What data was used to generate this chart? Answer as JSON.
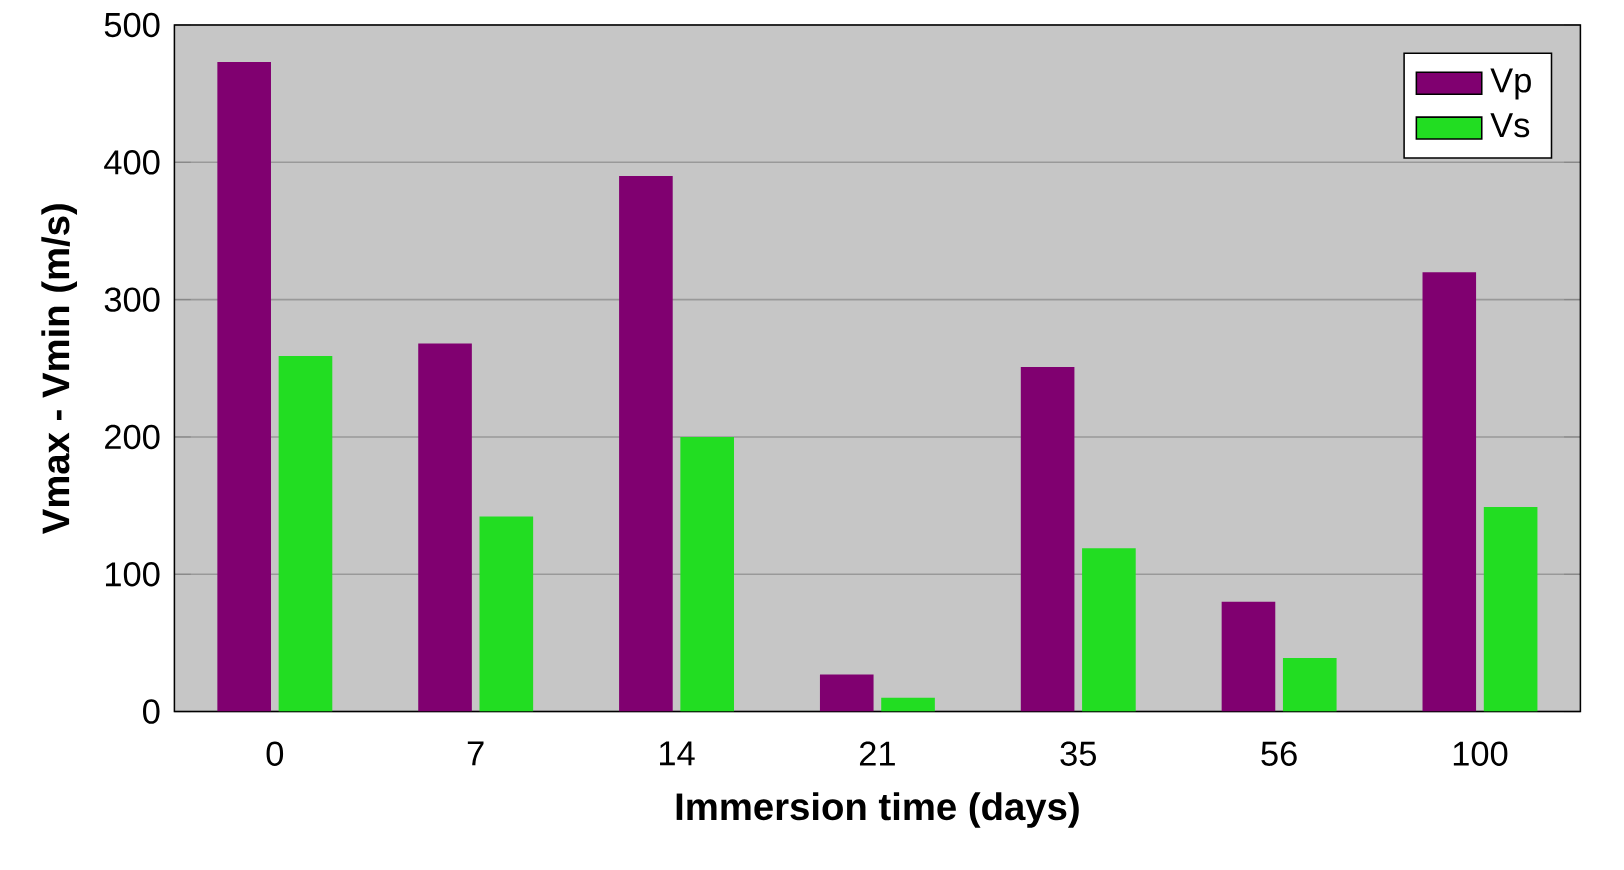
{
  "chart_data": {
    "type": "bar",
    "xlabel": "Immersion time (days)",
    "ylabel": "Vmax - Vmin (m/s)",
    "categories": [
      "0",
      "7",
      "14",
      "21",
      "35",
      "56",
      "100"
    ],
    "series": [
      {
        "name": "Vp",
        "color": "#800070",
        "values": [
          473,
          268,
          390,
          27,
          251,
          80,
          320
        ]
      },
      {
        "name": "Vs",
        "color": "#22dd22",
        "values": [
          259,
          142,
          200,
          10,
          119,
          39,
          149
        ]
      }
    ],
    "ylim": [
      0,
      500
    ],
    "yticks": [
      0,
      100,
      200,
      300,
      400,
      500
    ],
    "grid": "y",
    "legend": "top right"
  }
}
